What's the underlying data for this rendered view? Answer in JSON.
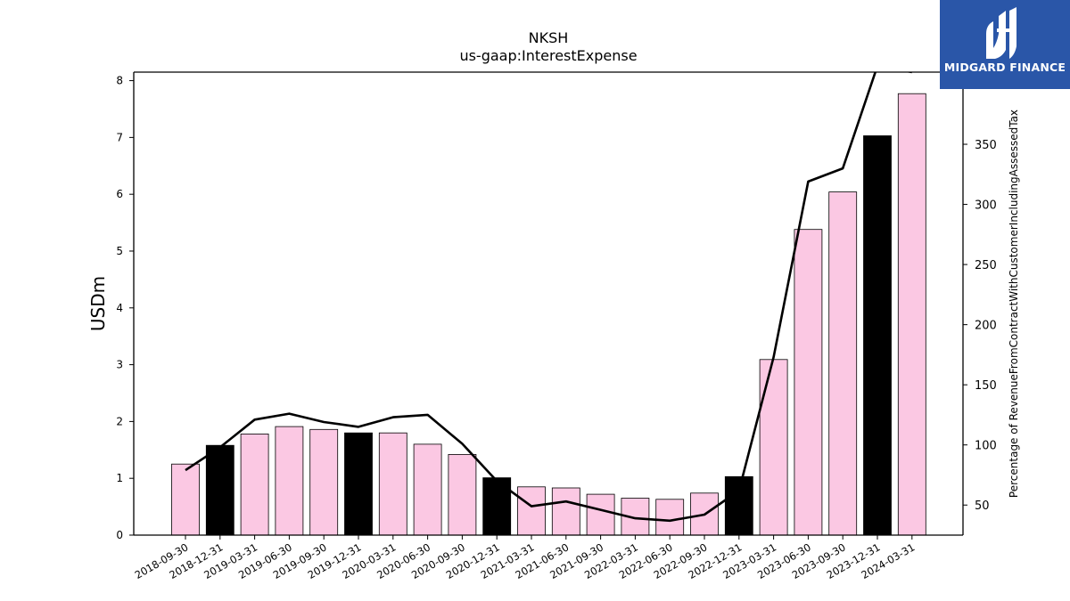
{
  "chart_data": {
    "type": "bar",
    "title": "NKSH",
    "subtitle": "us-gaap:InterestExpense",
    "ylabel": "USDm",
    "y2label": "Percentage of RevenueFromContractWithCustomerIncludingAssessedTax",
    "ylim": [
      0,
      8.15
    ],
    "y2lim": [
      25,
      410
    ],
    "yticks": [
      0,
      1,
      2,
      3,
      4,
      5,
      6,
      7,
      8
    ],
    "y2ticks": [
      50,
      100,
      150,
      200,
      250,
      300,
      350
    ],
    "grid": false,
    "categories": [
      "2018-09-30",
      "2018-12-31",
      "2019-03-31",
      "2019-06-30",
      "2019-09-30",
      "2019-12-31",
      "2020-03-31",
      "2020-06-30",
      "2020-09-30",
      "2020-12-31",
      "2021-03-31",
      "2021-06-30",
      "2021-09-30",
      "2022-03-31",
      "2022-06-30",
      "2022-09-30",
      "2022-12-31",
      "2023-03-31",
      "2023-06-30",
      "2023-09-30",
      "2023-12-31",
      "2024-03-31"
    ],
    "values": [
      1.25,
      1.58,
      1.78,
      1.91,
      1.86,
      1.8,
      1.8,
      1.6,
      1.42,
      1.01,
      0.85,
      0.83,
      0.72,
      0.65,
      0.63,
      0.74,
      1.03,
      3.09,
      5.38,
      6.04,
      7.03,
      7.77
    ],
    "highlight": [
      false,
      true,
      false,
      false,
      false,
      true,
      false,
      false,
      false,
      true,
      false,
      false,
      false,
      false,
      false,
      false,
      true,
      false,
      false,
      false,
      true,
      false
    ],
    "bar_color": "#fbc8e3",
    "highlight_color": "#000000",
    "line_values": [
      79,
      98,
      121,
      126,
      119,
      115,
      123,
      125,
      101,
      70,
      49,
      53,
      46,
      39,
      37,
      42,
      62,
      173,
      319,
      330,
      415,
      410
    ],
    "line_color": "#000000"
  },
  "logo": {
    "text": "MIDGARD FINANCE",
    "bg_color": "#2a56a8"
  }
}
